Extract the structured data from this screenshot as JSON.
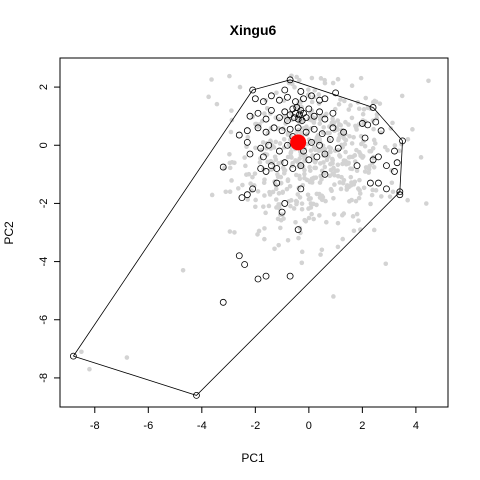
{
  "chart_data": {
    "type": "scatter",
    "title": "Xingu6",
    "xlabel": "PC1",
    "ylabel": "PC2",
    "xlim": [
      -9.3,
      5.2
    ],
    "ylim": [
      -9.0,
      3.0
    ],
    "x_ticks": [
      "-8",
      "-6",
      "-4",
      "-2",
      "0",
      "2",
      "4"
    ],
    "y_ticks": [
      "-8",
      "-6",
      "-4",
      "-2",
      "0",
      "2"
    ],
    "colors": {
      "background_points": "#d3d3d3",
      "highlight_points": "#000000",
      "hull_line": "#000000",
      "centroid": "#ff0000"
    },
    "background_points_note": "cloud of grey points centered near (0,0), roughly x in [-4, 4.8] and y in [-6.5, 2.5], plus a few outliers near (-8.5,-7.2) and (-6.8,-7.3)",
    "hull": [
      [
        -8.8,
        -7.25
      ],
      [
        -4.2,
        -8.6
      ],
      [
        3.4,
        -1.6
      ],
      [
        3.5,
        0.15
      ],
      [
        2.4,
        1.3
      ],
      [
        -0.7,
        2.25
      ],
      [
        -2.1,
        1.9
      ],
      [
        -8.8,
        -7.25
      ]
    ],
    "centroid": [
      -0.4,
      0.1
    ],
    "highlight_points": [
      [
        -8.8,
        -7.25
      ],
      [
        -4.2,
        -8.6
      ],
      [
        3.4,
        -1.6
      ],
      [
        3.5,
        0.15
      ],
      [
        2.4,
        1.3
      ],
      [
        -0.7,
        2.25
      ],
      [
        -2.1,
        1.9
      ],
      [
        -3.2,
        -5.4
      ],
      [
        -1.9,
        -4.6
      ],
      [
        -1.6,
        -4.5
      ],
      [
        -0.7,
        -4.5
      ],
      [
        -2.4,
        -4.1
      ],
      [
        -2.6,
        -3.8
      ],
      [
        -0.4,
        -2.9
      ],
      [
        -1.0,
        -2.3
      ],
      [
        -0.9,
        -2.0
      ],
      [
        -2.5,
        -1.8
      ],
      [
        -2.3,
        -1.7
      ],
      [
        -2.1,
        -1.5
      ],
      [
        -1.2,
        -1.3
      ],
      [
        -0.3,
        -1.5
      ],
      [
        -3.2,
        -0.75
      ],
      [
        0.6,
        -1.0
      ],
      [
        1.8,
        -0.7
      ],
      [
        2.4,
        -0.5
      ],
      [
        2.3,
        -1.3
      ],
      [
        2.6,
        -1.3
      ],
      [
        2.9,
        -1.5
      ],
      [
        3.2,
        -0.9
      ],
      [
        3.4,
        -1.7
      ],
      [
        -1.8,
        -0.8
      ],
      [
        -1.6,
        -0.9
      ],
      [
        -1.4,
        -0.7
      ],
      [
        -1.2,
        -0.8
      ],
      [
        -0.9,
        -0.6
      ],
      [
        -0.6,
        -0.8
      ],
      [
        -0.3,
        -0.7
      ],
      [
        0.0,
        -0.5
      ],
      [
        0.3,
        -0.4
      ],
      [
        0.6,
        -0.3
      ],
      [
        -2.2,
        -0.3
      ],
      [
        -1.8,
        -0.1
      ],
      [
        -1.5,
        0.0
      ],
      [
        -1.1,
        -0.2
      ],
      [
        -0.8,
        0.0
      ],
      [
        -0.2,
        -0.2
      ],
      [
        0.1,
        0.1
      ],
      [
        0.4,
        0.0
      ],
      [
        0.8,
        0.2
      ],
      [
        1.1,
        -0.1
      ],
      [
        -2.6,
        0.35
      ],
      [
        -2.3,
        0.5
      ],
      [
        -1.9,
        0.6
      ],
      [
        -1.6,
        0.45
      ],
      [
        -1.3,
        0.6
      ],
      [
        -1.0,
        0.5
      ],
      [
        -0.7,
        0.55
      ],
      [
        -0.4,
        0.6
      ],
      [
        -0.1,
        0.45
      ],
      [
        0.2,
        0.55
      ],
      [
        0.5,
        0.4
      ],
      [
        0.9,
        0.6
      ],
      [
        1.3,
        0.45
      ],
      [
        -2.2,
        1.0
      ],
      [
        -1.9,
        1.1
      ],
      [
        -1.6,
        0.9
      ],
      [
        -1.4,
        1.2
      ],
      [
        -1.1,
        0.95
      ],
      [
        -0.9,
        1.15
      ],
      [
        -0.8,
        0.85
      ],
      [
        -0.7,
        1.05
      ],
      [
        -0.6,
        1.25
      ],
      [
        -0.55,
        0.95
      ],
      [
        -0.5,
        1.1
      ],
      [
        -0.45,
        1.3
      ],
      [
        -0.4,
        0.9
      ],
      [
        -0.35,
        1.05
      ],
      [
        -0.3,
        1.2
      ],
      [
        -0.25,
        0.85
      ],
      [
        -0.2,
        1.1
      ],
      [
        -0.1,
        0.95
      ],
      [
        0.0,
        1.25
      ],
      [
        0.2,
        1.0
      ],
      [
        0.4,
        1.15
      ],
      [
        0.6,
        0.9
      ],
      [
        0.9,
        1.1
      ],
      [
        -2.0,
        1.6
      ],
      [
        -1.7,
        1.5
      ],
      [
        -1.4,
        1.7
      ],
      [
        -1.1,
        1.55
      ],
      [
        -0.8,
        1.65
      ],
      [
        -0.5,
        1.5
      ],
      [
        -0.2,
        1.6
      ],
      [
        0.1,
        1.7
      ],
      [
        0.4,
        1.55
      ],
      [
        -0.9,
        1.9
      ],
      [
        -0.3,
        1.85
      ],
      [
        1.0,
        1.8
      ],
      [
        -2.3,
        0.1
      ],
      [
        -1.7,
        -0.4
      ],
      [
        -0.6,
        0.3
      ],
      [
        0.6,
        1.6
      ],
      [
        2.1,
        0.25
      ],
      [
        2.0,
        0.75
      ],
      [
        2.2,
        0.7
      ],
      [
        2.6,
        -0.4
      ],
      [
        2.9,
        -0.7
      ],
      [
        3.3,
        -0.6
      ],
      [
        2.5,
        0.8
      ],
      [
        2.7,
        0.5
      ],
      [
        3.2,
        -0.2
      ]
    ]
  }
}
